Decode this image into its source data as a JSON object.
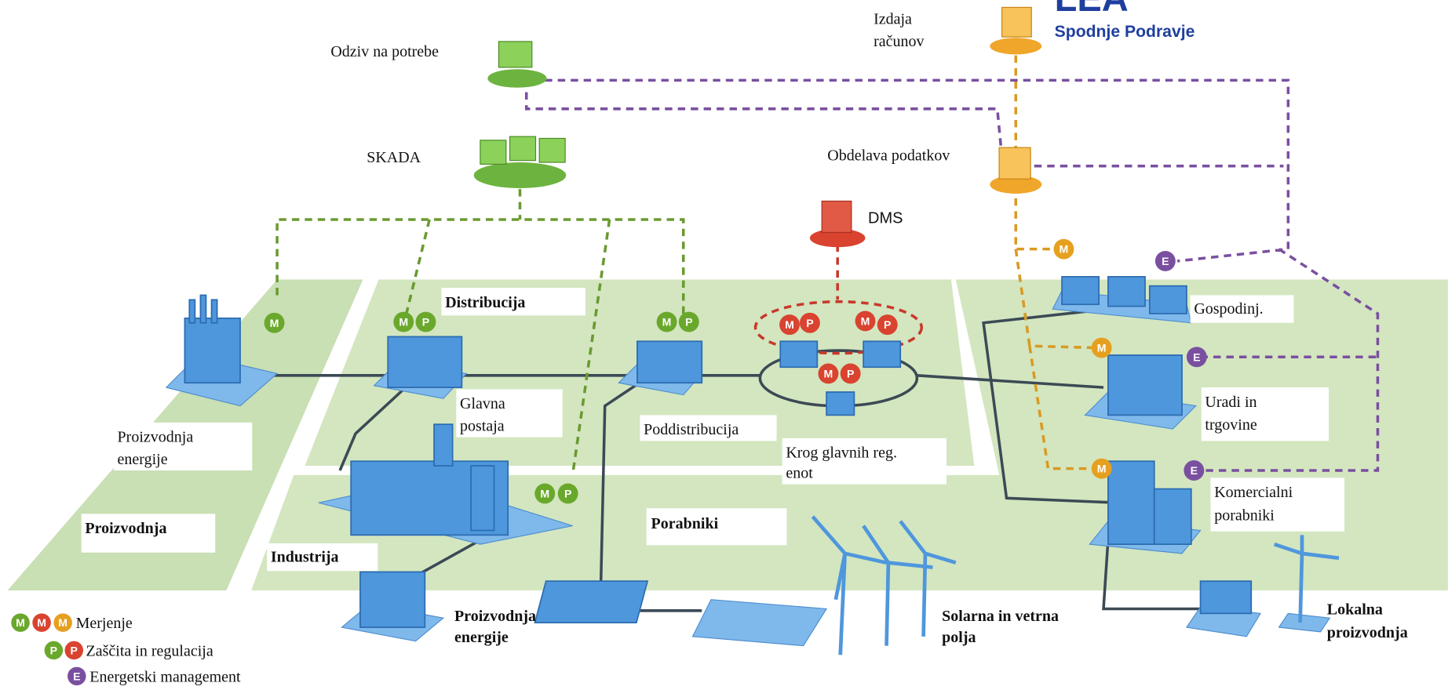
{
  "logo": {
    "title": "LEA",
    "subtitle": "Spodnje Podravje"
  },
  "labels": [
    {
      "lines": [
        "Odziv na potrebe"
      ]
    },
    {
      "lines": [
        "Izdaja",
        "računov"
      ]
    },
    {
      "lines": [
        "SKADA"
      ]
    },
    {
      "lines": [
        "Obdelava podatkov"
      ]
    },
    {
      "lines": [
        "DMS"
      ]
    },
    {
      "lines": [
        "Distribucija"
      ]
    },
    {
      "lines": [
        "Glavna",
        "postaja"
      ]
    },
    {
      "lines": [
        "Poddistribucija"
      ]
    },
    {
      "lines": [
        "Krog glavnih reg.",
        "enot"
      ]
    },
    {
      "lines": [
        "Proizvodnja",
        "energije"
      ]
    },
    {
      "lines": [
        "Proizvodnja"
      ]
    },
    {
      "lines": [
        "Industrija"
      ]
    },
    {
      "lines": [
        "Porabniki"
      ]
    },
    {
      "lines": [
        "Proizvodnja",
        "energije"
      ]
    },
    {
      "lines": [
        "Solarna in vetrna",
        "polja"
      ]
    },
    {
      "lines": [
        "Lokalna",
        "proizvodnja"
      ]
    },
    {
      "lines": [
        "Gospodinj."
      ]
    },
    {
      "lines": [
        "Uradi in",
        "trgovine"
      ]
    },
    {
      "lines": [
        "Komercialni",
        "porabniki"
      ]
    }
  ],
  "legend": [
    {
      "symbol": "M",
      "label": "Merjenje"
    },
    {
      "symbol": "P",
      "label": "Zaščita in regulacija"
    },
    {
      "symbol": "E",
      "label": "Energetski management"
    }
  ]
}
